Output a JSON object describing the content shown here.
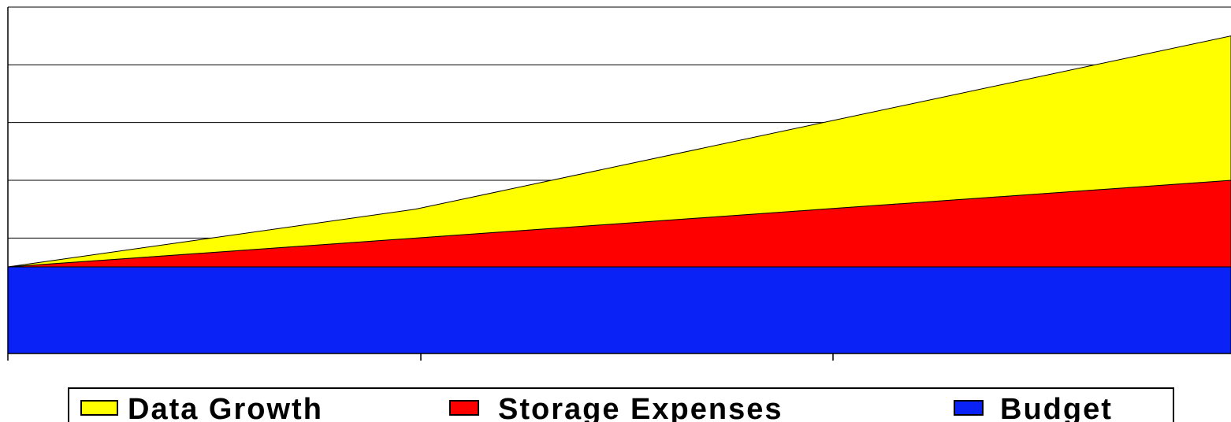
{
  "chart_data": {
    "type": "area",
    "stacked": true,
    "title": "",
    "xlabel": "",
    "ylabel": "",
    "x": [
      0,
      1,
      2,
      3
    ],
    "ylim": [
      0,
      6
    ],
    "grid": true,
    "legend_position": "bottom",
    "series": [
      {
        "name": "Budget",
        "key": "budget",
        "color": "#0A22F5",
        "values": [
          1.5,
          1.5,
          1.5,
          1.5
        ]
      },
      {
        "name": "Storage Expenses",
        "key": "storage",
        "color": "#FF0000",
        "values": [
          0,
          0.5,
          1.0,
          1.5
        ]
      },
      {
        "name": "Data Growth",
        "key": "growth",
        "color": "#FFFF00",
        "values": [
          0,
          0.5,
          1.5,
          2.5
        ]
      }
    ]
  },
  "legend": {
    "items": [
      {
        "label": "Data Growth",
        "color": "#FFFF00"
      },
      {
        "label": "Storage Expenses",
        "color": "#FF0000"
      },
      {
        "label": "Budget",
        "color": "#0A22F5"
      }
    ]
  }
}
